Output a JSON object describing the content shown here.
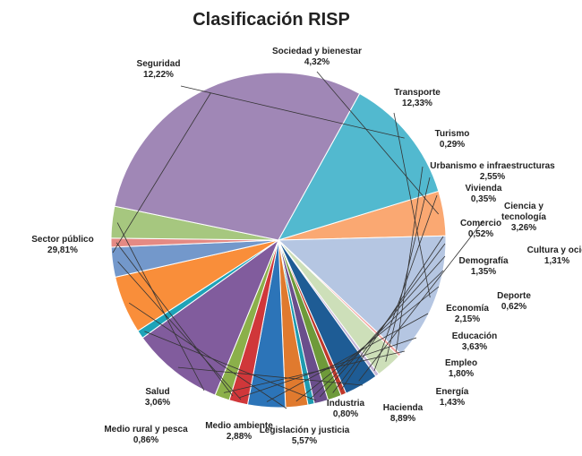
{
  "chart_data": {
    "type": "pie",
    "title": "Clasificación RISP",
    "legend": "none (data labels with leader lines)",
    "slices": [
      {
        "label": "Sociedad y bienestar",
        "value_text": "4,32%",
        "value": 4.32,
        "color": "#FAA872"
      },
      {
        "label": "Transporte",
        "value_text": "12,33%",
        "value": 12.33,
        "color": "#B5C6E2"
      },
      {
        "label": "Turismo",
        "value_text": "0,29%",
        "value": 0.29,
        "color": "#F4A6A2"
      },
      {
        "label": "Urbanismo e infraestructuras",
        "value_text": "2,55%",
        "value": 2.55,
        "color": "#CDDFB9"
      },
      {
        "label": "Vivienda",
        "value_text": "0,35%",
        "value": 0.35,
        "color": "#C6B6D7"
      },
      {
        "label": "Ciencia y tecnología",
        "value_text": "3,26%",
        "value": 3.26,
        "color": "#1E5C95"
      },
      {
        "label": "Comercio",
        "value_text": "0,52%",
        "value": 0.52,
        "color": "#C0392B"
      },
      {
        "label": "Cultura y ocio",
        "value_text": "1,31%",
        "value": 1.31,
        "color": "#6E9A3A"
      },
      {
        "label": "Demografía",
        "value_text": "1,35%",
        "value": 1.35,
        "color": "#6A4E8C"
      },
      {
        "label": "Deporte",
        "value_text": "0,62%",
        "value": 0.62,
        "color": "#1E9BB0"
      },
      {
        "label": "Economía",
        "value_text": "2,15%",
        "value": 2.15,
        "color": "#E07A2E"
      },
      {
        "label": "Educación",
        "value_text": "3,63%",
        "value": 3.63,
        "color": "#2C74B8"
      },
      {
        "label": "Empleo",
        "value_text": "1,80%",
        "value": 1.8,
        "color": "#D0373A"
      },
      {
        "label": "Energía",
        "value_text": "1,43%",
        "value": 1.43,
        "color": "#8BB04A"
      },
      {
        "label": "Hacienda",
        "value_text": "8,89%",
        "value": 8.89,
        "color": "#815C9D"
      },
      {
        "label": "Industria",
        "value_text": "0,80%",
        "value": 0.8,
        "color": "#1EA3B8"
      },
      {
        "label": "Legislación y justicia",
        "value_text": "5,57%",
        "value": 5.57,
        "color": "#F98E3A"
      },
      {
        "label": "Medio ambiente",
        "value_text": "2,88%",
        "value": 2.88,
        "color": "#7398CB"
      },
      {
        "label": "Medio rural y pesca",
        "value_text": "0,86%",
        "value": 0.86,
        "color": "#E48A84"
      },
      {
        "label": "Salud",
        "value_text": "3,06%",
        "value": 3.06,
        "color": "#A6C77F"
      },
      {
        "label": "Sector público",
        "value_text": "29,81%",
        "value": 29.81,
        "color": "#A087B6"
      },
      {
        "label": "Seguridad",
        "value_text": "12,22%",
        "value": 12.22,
        "color": "#52B9CF"
      }
    ]
  }
}
